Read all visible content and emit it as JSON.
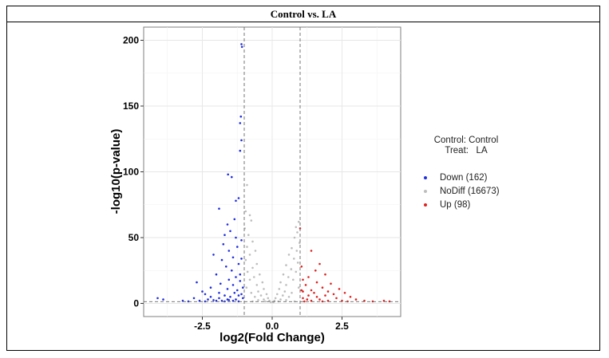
{
  "title": "Control vs. LA",
  "legend": {
    "control_line": "Control: Control",
    "treat_line": "Treat:   LA",
    "items": [
      {
        "label": "Down (162)",
        "color": "#1f2de0"
      },
      {
        "label": "NoDiff (16673)",
        "color": "#bdbdbd"
      },
      {
        "label": "Up (98)",
        "color": "#e0211f"
      }
    ]
  },
  "chart_data": {
    "type": "scatter",
    "xlabel": "log2(Fold Change)",
    "ylabel": "-log10(p-value)",
    "xlim": [
      -4.6,
      4.6
    ],
    "ylim": [
      -10,
      210
    ],
    "x_ticks": [
      -2.5,
      0.0,
      2.5
    ],
    "x_tick_labels": [
      "-2.5",
      "0.0",
      "2.5"
    ],
    "y_ticks": [
      0,
      50,
      100,
      150,
      200
    ],
    "y_tick_labels": [
      "0",
      "50",
      "100",
      "150",
      "200"
    ],
    "grid": true,
    "threshold_lines": {
      "x": [
        -1,
        1
      ],
      "y": 1.3
    },
    "series": [
      {
        "name": "Down (162)",
        "color": "#1f2de0",
        "points": [
          [
            -1.1,
            197
          ],
          [
            -1.08,
            195
          ],
          [
            -1.12,
            142
          ],
          [
            -1.15,
            137
          ],
          [
            -1.1,
            124
          ],
          [
            -1.15,
            116
          ],
          [
            -1.58,
            98
          ],
          [
            -1.45,
            96
          ],
          [
            -1.2,
            80
          ],
          [
            -1.3,
            78
          ],
          [
            -1.9,
            72
          ],
          [
            -1.35,
            64
          ],
          [
            -1.6,
            60
          ],
          [
            -1.5,
            55
          ],
          [
            -1.7,
            52
          ],
          [
            -1.3,
            50
          ],
          [
            -1.1,
            48
          ],
          [
            -1.75,
            45
          ],
          [
            -1.25,
            43
          ],
          [
            -1.55,
            40
          ],
          [
            -2.1,
            37
          ],
          [
            -1.4,
            35
          ],
          [
            -1.8,
            33
          ],
          [
            -1.2,
            30
          ],
          [
            -1.65,
            28
          ],
          [
            -1.45,
            25
          ],
          [
            -2.0,
            22
          ],
          [
            -1.3,
            20
          ],
          [
            -1.55,
            18
          ],
          [
            -1.15,
            17
          ],
          [
            -2.7,
            16
          ],
          [
            -1.85,
            15
          ],
          [
            -1.4,
            14
          ],
          [
            -2.2,
            12
          ],
          [
            -1.6,
            11
          ],
          [
            -1.25,
            10
          ],
          [
            -2.5,
            9
          ],
          [
            -1.9,
            8
          ],
          [
            -1.35,
            8
          ],
          [
            -2.4,
            7
          ],
          [
            -1.7,
            6
          ],
          [
            -1.2,
            6
          ],
          [
            -2.2,
            5
          ],
          [
            -1.5,
            5
          ],
          [
            -2.8,
            4
          ],
          [
            -1.9,
            4
          ],
          [
            -1.3,
            3
          ],
          [
            -2.3,
            3
          ],
          [
            -1.6,
            3
          ],
          [
            -3.2,
            2
          ],
          [
            -2.0,
            2
          ],
          [
            -1.4,
            2
          ],
          [
            -2.6,
            2
          ],
          [
            -1.8,
            2
          ],
          [
            -4.1,
            4
          ],
          [
            -3.9,
            3
          ],
          [
            -3.0,
            1.5
          ],
          [
            -2.4,
            1.5
          ],
          [
            -1.7,
            1.5
          ],
          [
            -1.2,
            1.5
          ],
          [
            -2.1,
            2.5
          ],
          [
            -1.55,
            2.5
          ],
          [
            -1.05,
            4
          ],
          [
            -1.1,
            7
          ],
          [
            -1.05,
            12
          ],
          [
            -1.15,
            22
          ],
          [
            -1.1,
            34
          ]
        ]
      },
      {
        "name": "NoDiff (16673)",
        "color": "#bdbdbd",
        "points": [
          [
            -0.9,
            90
          ],
          [
            -0.95,
            70
          ],
          [
            -0.8,
            67
          ],
          [
            -0.75,
            63
          ],
          [
            -0.98,
            57
          ],
          [
            -0.85,
            52
          ],
          [
            -0.7,
            47
          ],
          [
            -0.9,
            43
          ],
          [
            -0.6,
            40
          ],
          [
            -0.8,
            37
          ],
          [
            -0.95,
            33
          ],
          [
            -0.55,
            30
          ],
          [
            -0.7,
            27
          ],
          [
            -0.88,
            24
          ],
          [
            -0.45,
            22
          ],
          [
            -0.65,
            20
          ],
          [
            -0.8,
            18
          ],
          [
            -0.35,
            16
          ],
          [
            -0.55,
            14
          ],
          [
            -0.92,
            12
          ],
          [
            -0.3,
            11
          ],
          [
            -0.5,
            9
          ],
          [
            -0.75,
            8
          ],
          [
            -0.2,
            7
          ],
          [
            -0.4,
            6
          ],
          [
            -0.62,
            5
          ],
          [
            -0.15,
            4
          ],
          [
            -0.3,
            3
          ],
          [
            -0.5,
            2.5
          ],
          [
            -0.1,
            2
          ],
          [
            -0.25,
            1.5
          ],
          [
            -0.7,
            1.5
          ],
          [
            -0.05,
            1
          ],
          [
            0.95,
            62
          ],
          [
            0.85,
            58
          ],
          [
            0.9,
            54
          ],
          [
            0.8,
            50
          ],
          [
            0.98,
            46
          ],
          [
            0.7,
            42
          ],
          [
            0.88,
            40
          ],
          [
            0.6,
            37
          ],
          [
            0.78,
            34
          ],
          [
            0.92,
            31
          ],
          [
            0.5,
            29
          ],
          [
            0.68,
            26
          ],
          [
            0.85,
            24
          ],
          [
            0.4,
            22
          ],
          [
            0.58,
            20
          ],
          [
            0.75,
            18
          ],
          [
            0.3,
            16
          ],
          [
            0.5,
            14
          ],
          [
            0.95,
            12
          ],
          [
            0.25,
            11
          ],
          [
            0.45,
            9
          ],
          [
            0.7,
            8
          ],
          [
            0.18,
            7
          ],
          [
            0.38,
            6
          ],
          [
            0.6,
            5
          ],
          [
            0.12,
            4
          ],
          [
            0.3,
            3
          ],
          [
            0.5,
            2.5
          ],
          [
            0.08,
            2
          ],
          [
            0.22,
            1.5
          ],
          [
            0.8,
            1.5
          ],
          [
            0.04,
            1
          ]
        ]
      },
      {
        "name": "Up (98)",
        "color": "#e0211f",
        "points": [
          [
            1.0,
            57
          ],
          [
            1.4,
            40
          ],
          [
            1.7,
            30
          ],
          [
            1.55,
            25
          ],
          [
            1.9,
            22
          ],
          [
            1.3,
            20
          ],
          [
            1.6,
            16
          ],
          [
            2.1,
            15
          ],
          [
            1.2,
            14
          ],
          [
            1.8,
            12
          ],
          [
            2.4,
            11
          ],
          [
            1.4,
            10
          ],
          [
            2.0,
            9
          ],
          [
            1.1,
            9
          ],
          [
            2.6,
            8
          ],
          [
            1.5,
            8
          ],
          [
            2.2,
            7
          ],
          [
            1.3,
            6
          ],
          [
            1.9,
            6
          ],
          [
            2.8,
            5
          ],
          [
            1.6,
            5
          ],
          [
            1.1,
            4
          ],
          [
            2.3,
            4
          ],
          [
            3.0,
            3
          ],
          [
            1.7,
            3
          ],
          [
            1.25,
            3
          ],
          [
            2.5,
            2
          ],
          [
            2.0,
            2
          ],
          [
            1.4,
            2
          ],
          [
            3.3,
            2
          ],
          [
            1.8,
            1.5
          ],
          [
            1.15,
            1.5
          ],
          [
            2.7,
            1.5
          ],
          [
            3.6,
            1.5
          ],
          [
            4.0,
            2
          ],
          [
            4.2,
            1.5
          ],
          [
            1.05,
            10
          ],
          [
            1.1,
            18
          ],
          [
            1.05,
            28
          ]
        ]
      }
    ]
  }
}
